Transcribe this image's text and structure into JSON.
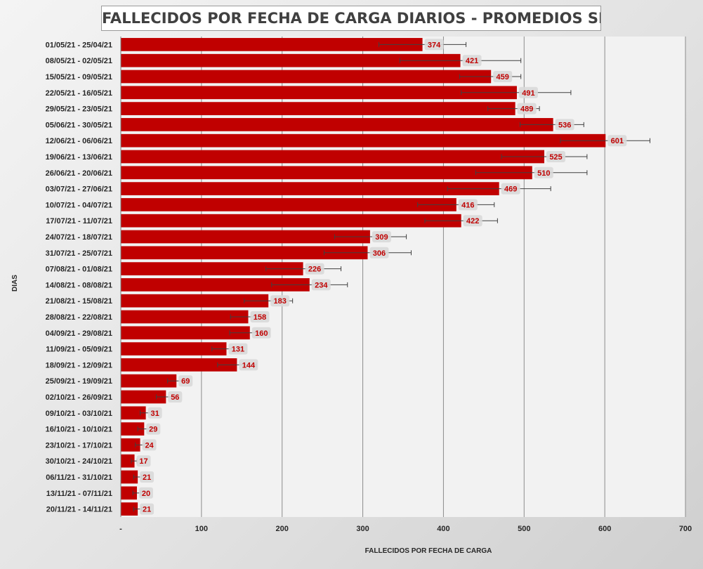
{
  "chart_data": {
    "type": "bar",
    "orientation": "horizontal",
    "title": "FALLECIDOS POR FECHA DE CARGA DIARIOS - PROMEDIOS SEMANALES",
    "xlabel": "FALLECIDOS POR FECHA DE CARGA",
    "ylabel": "DIAS",
    "xlim": [
      0,
      700
    ],
    "xticks": [
      "-",
      "100",
      "200",
      "300",
      "400",
      "500",
      "600",
      "700"
    ],
    "grid": true,
    "legend": "none",
    "bar_color": "#c00000",
    "categories": [
      "01/05/21 - 25/04/21",
      "08/05/21 - 02/05/21",
      "15/05/21 - 09/05/21",
      "22/05/21 - 16/05/21",
      "29/05/21 - 23/05/21",
      "05/06/21 - 30/05/21",
      "12/06/21 - 06/06/21",
      "19/06/21 - 13/06/21",
      "26/06/21 - 20/06/21",
      "03/07/21 - 27/06/21",
      "10/07/21 - 04/07/21",
      "17/07/21 - 11/07/21",
      "24/07/21 - 18/07/21",
      "31/07/21 - 25/07/21",
      "07/08/21 - 01/08/21",
      "14/08/21 - 08/08/21",
      "21/08/21 - 15/08/21",
      "28/08/21 - 22/08/21",
      "04/09/21 - 29/08/21",
      "11/09/21 - 05/09/21",
      "18/09/21 - 12/09/21",
      "25/09/21 - 19/09/21",
      "02/10/21 - 26/09/21",
      "09/10/21 - 03/10/21",
      "16/10/21 - 10/10/21",
      "23/10/21 - 17/10/21",
      "30/10/21 - 24/10/21",
      "06/11/21 - 31/10/21",
      "13/11/21 - 07/11/21",
      "20/11/21 - 14/11/21"
    ],
    "values": [
      374,
      421,
      459,
      491,
      489,
      536,
      601,
      525,
      510,
      469,
      416,
      422,
      309,
      306,
      226,
      234,
      183,
      158,
      160,
      131,
      144,
      69,
      56,
      31,
      29,
      24,
      17,
      21,
      20,
      21
    ],
    "error_low": [
      320,
      346,
      420,
      422,
      455,
      495,
      545,
      472,
      440,
      405,
      368,
      377,
      265,
      252,
      180,
      187,
      153,
      136,
      135,
      113,
      120,
      58,
      44,
      24,
      21,
      18,
      13,
      16,
      15,
      16
    ],
    "error_high": [
      428,
      496,
      496,
      558,
      519,
      574,
      656,
      578,
      578,
      533,
      463,
      467,
      354,
      360,
      273,
      281,
      213,
      180,
      184,
      150,
      168,
      80,
      67,
      38,
      37,
      29,
      20,
      26,
      25,
      26
    ]
  }
}
